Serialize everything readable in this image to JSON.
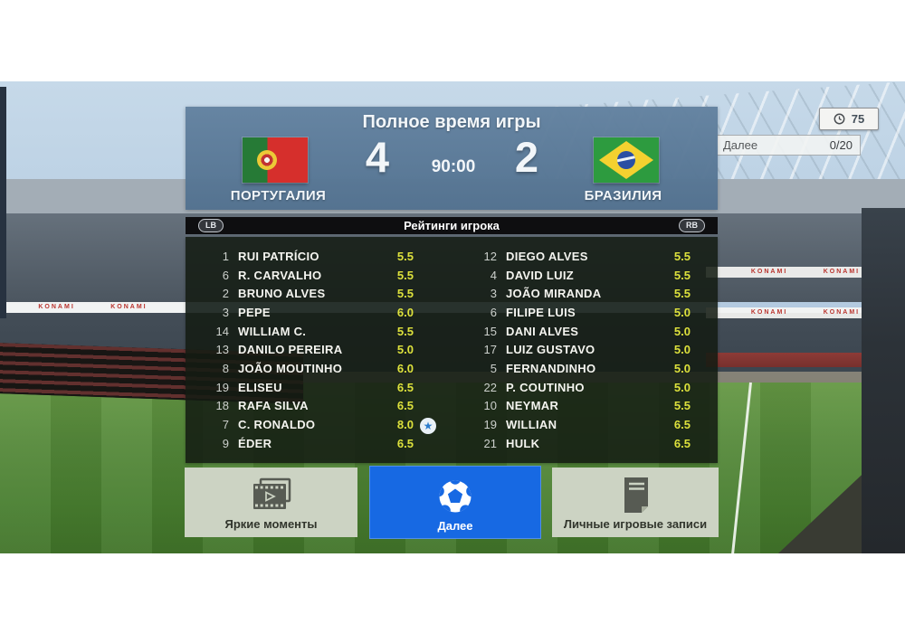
{
  "scoreboard": {
    "title": "Полное время игры",
    "time": "90:00",
    "home": {
      "name": "ПОРТУГАЛИЯ",
      "score": "4",
      "flag": "portugal"
    },
    "away": {
      "name": "БРАЗИЛИЯ",
      "score": "2",
      "flag": "brazil"
    }
  },
  "hud": {
    "timer_value": "75",
    "next_label": "Далее",
    "next_counter": "0/20"
  },
  "ratings": {
    "bar_title": "Рейтинги игрока",
    "lb_label": "LB",
    "rb_label": "RB",
    "home_players": [
      {
        "num": "1",
        "name": "RUI PATRÍCIO",
        "rating": "5.5"
      },
      {
        "num": "6",
        "name": "R. CARVALHO",
        "rating": "5.5"
      },
      {
        "num": "2",
        "name": "BRUNO ALVES",
        "rating": "5.5"
      },
      {
        "num": "3",
        "name": "PEPE",
        "rating": "6.0"
      },
      {
        "num": "14",
        "name": "WILLIAM C.",
        "rating": "5.5"
      },
      {
        "num": "13",
        "name": "DANILO PEREIRA",
        "rating": "5.0"
      },
      {
        "num": "8",
        "name": "JOÃO MOUTINHO",
        "rating": "6.0"
      },
      {
        "num": "19",
        "name": "ELISEU",
        "rating": "6.5"
      },
      {
        "num": "18",
        "name": "RAFA SILVA",
        "rating": "6.5"
      },
      {
        "num": "7",
        "name": "C. RONALDO",
        "rating": "8.0",
        "star": true
      },
      {
        "num": "9",
        "name": "ÉDER",
        "rating": "6.5"
      }
    ],
    "away_players": [
      {
        "num": "12",
        "name": "DIEGO ALVES",
        "rating": "5.5"
      },
      {
        "num": "4",
        "name": "DAVID LUIZ",
        "rating": "5.5"
      },
      {
        "num": "3",
        "name": "JOÃO MIRANDA",
        "rating": "5.5"
      },
      {
        "num": "6",
        "name": "FILIPE LUIS",
        "rating": "5.0"
      },
      {
        "num": "15",
        "name": "DANI ALVES",
        "rating": "5.0"
      },
      {
        "num": "17",
        "name": "LUIZ GUSTAVO",
        "rating": "5.0"
      },
      {
        "num": "5",
        "name": "FERNANDINHO",
        "rating": "5.0"
      },
      {
        "num": "22",
        "name": "P. COUTINHO",
        "rating": "5.0"
      },
      {
        "num": "10",
        "name": "NEYMAR",
        "rating": "5.5"
      },
      {
        "num": "19",
        "name": "WILLIAN",
        "rating": "6.5"
      },
      {
        "num": "21",
        "name": "HULK",
        "rating": "6.5"
      }
    ]
  },
  "buttons": [
    {
      "label": "Яркие моменты",
      "icon": "film-icon",
      "active": false
    },
    {
      "label": "Далее",
      "icon": "soccer-ball-icon",
      "active": true
    },
    {
      "label": "Личные игровые записи",
      "icon": "document-icon",
      "active": false
    }
  ],
  "background": {
    "ad_text": "KONAMI"
  },
  "colors": {
    "accent_blue": "#1769e3",
    "rating_yellow": "#dde13c",
    "panel_blue": "#5e7da0"
  }
}
